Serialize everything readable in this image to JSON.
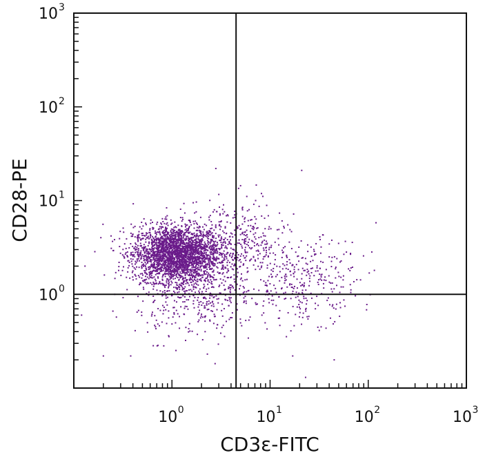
{
  "chart_data": {
    "type": "scatter",
    "title": "",
    "xlabel": "CD3ε-FITC",
    "ylabel": "CD28-PE",
    "xscale": "log",
    "yscale": "log",
    "xlim": [
      0.1,
      1000
    ],
    "ylim": [
      0.1,
      1000
    ],
    "x_ticks": [
      {
        "value": 1,
        "base": "10",
        "exp": "0"
      },
      {
        "value": 10,
        "base": "10",
        "exp": "1"
      },
      {
        "value": 100,
        "base": "10",
        "exp": "2"
      },
      {
        "value": 1000,
        "base": "10",
        "exp": "3"
      }
    ],
    "y_ticks": [
      {
        "value": 1,
        "base": "10",
        "exp": "0"
      },
      {
        "value": 10,
        "base": "10",
        "exp": "1"
      },
      {
        "value": 100,
        "base": "10",
        "exp": "2"
      },
      {
        "value": 1000,
        "base": "10",
        "exp": "3"
      }
    ],
    "quadrant_gates": {
      "x": 4.5,
      "y": 1.0
    },
    "grid": false,
    "point_color": "#6a1b8a",
    "populations": [
      {
        "center": [
          1.1,
          2.7
        ],
        "spread_log10": [
          0.22,
          0.15
        ],
        "count": 2600
      },
      {
        "center": [
          1.8,
          1.1
        ],
        "spread_log10": [
          0.3,
          0.25
        ],
        "count": 500
      },
      {
        "center": [
          4.5,
          3.6
        ],
        "spread_log10": [
          0.25,
          0.22
        ],
        "count": 350
      },
      {
        "center": [
          22,
          1.4
        ],
        "spread_log10": [
          0.28,
          0.22
        ],
        "count": 320
      }
    ],
    "outliers": [
      [
        2.8,
        22
      ],
      [
        21,
        21
      ],
      [
        120,
        5.8
      ],
      [
        0.13,
        2.0
      ],
      [
        0.12,
        0.6
      ],
      [
        0.2,
        0.22
      ],
      [
        0.38,
        0.22
      ],
      [
        45,
        0.2
      ],
      [
        23,
        0.13
      ],
      [
        17,
        0.22
      ]
    ]
  }
}
